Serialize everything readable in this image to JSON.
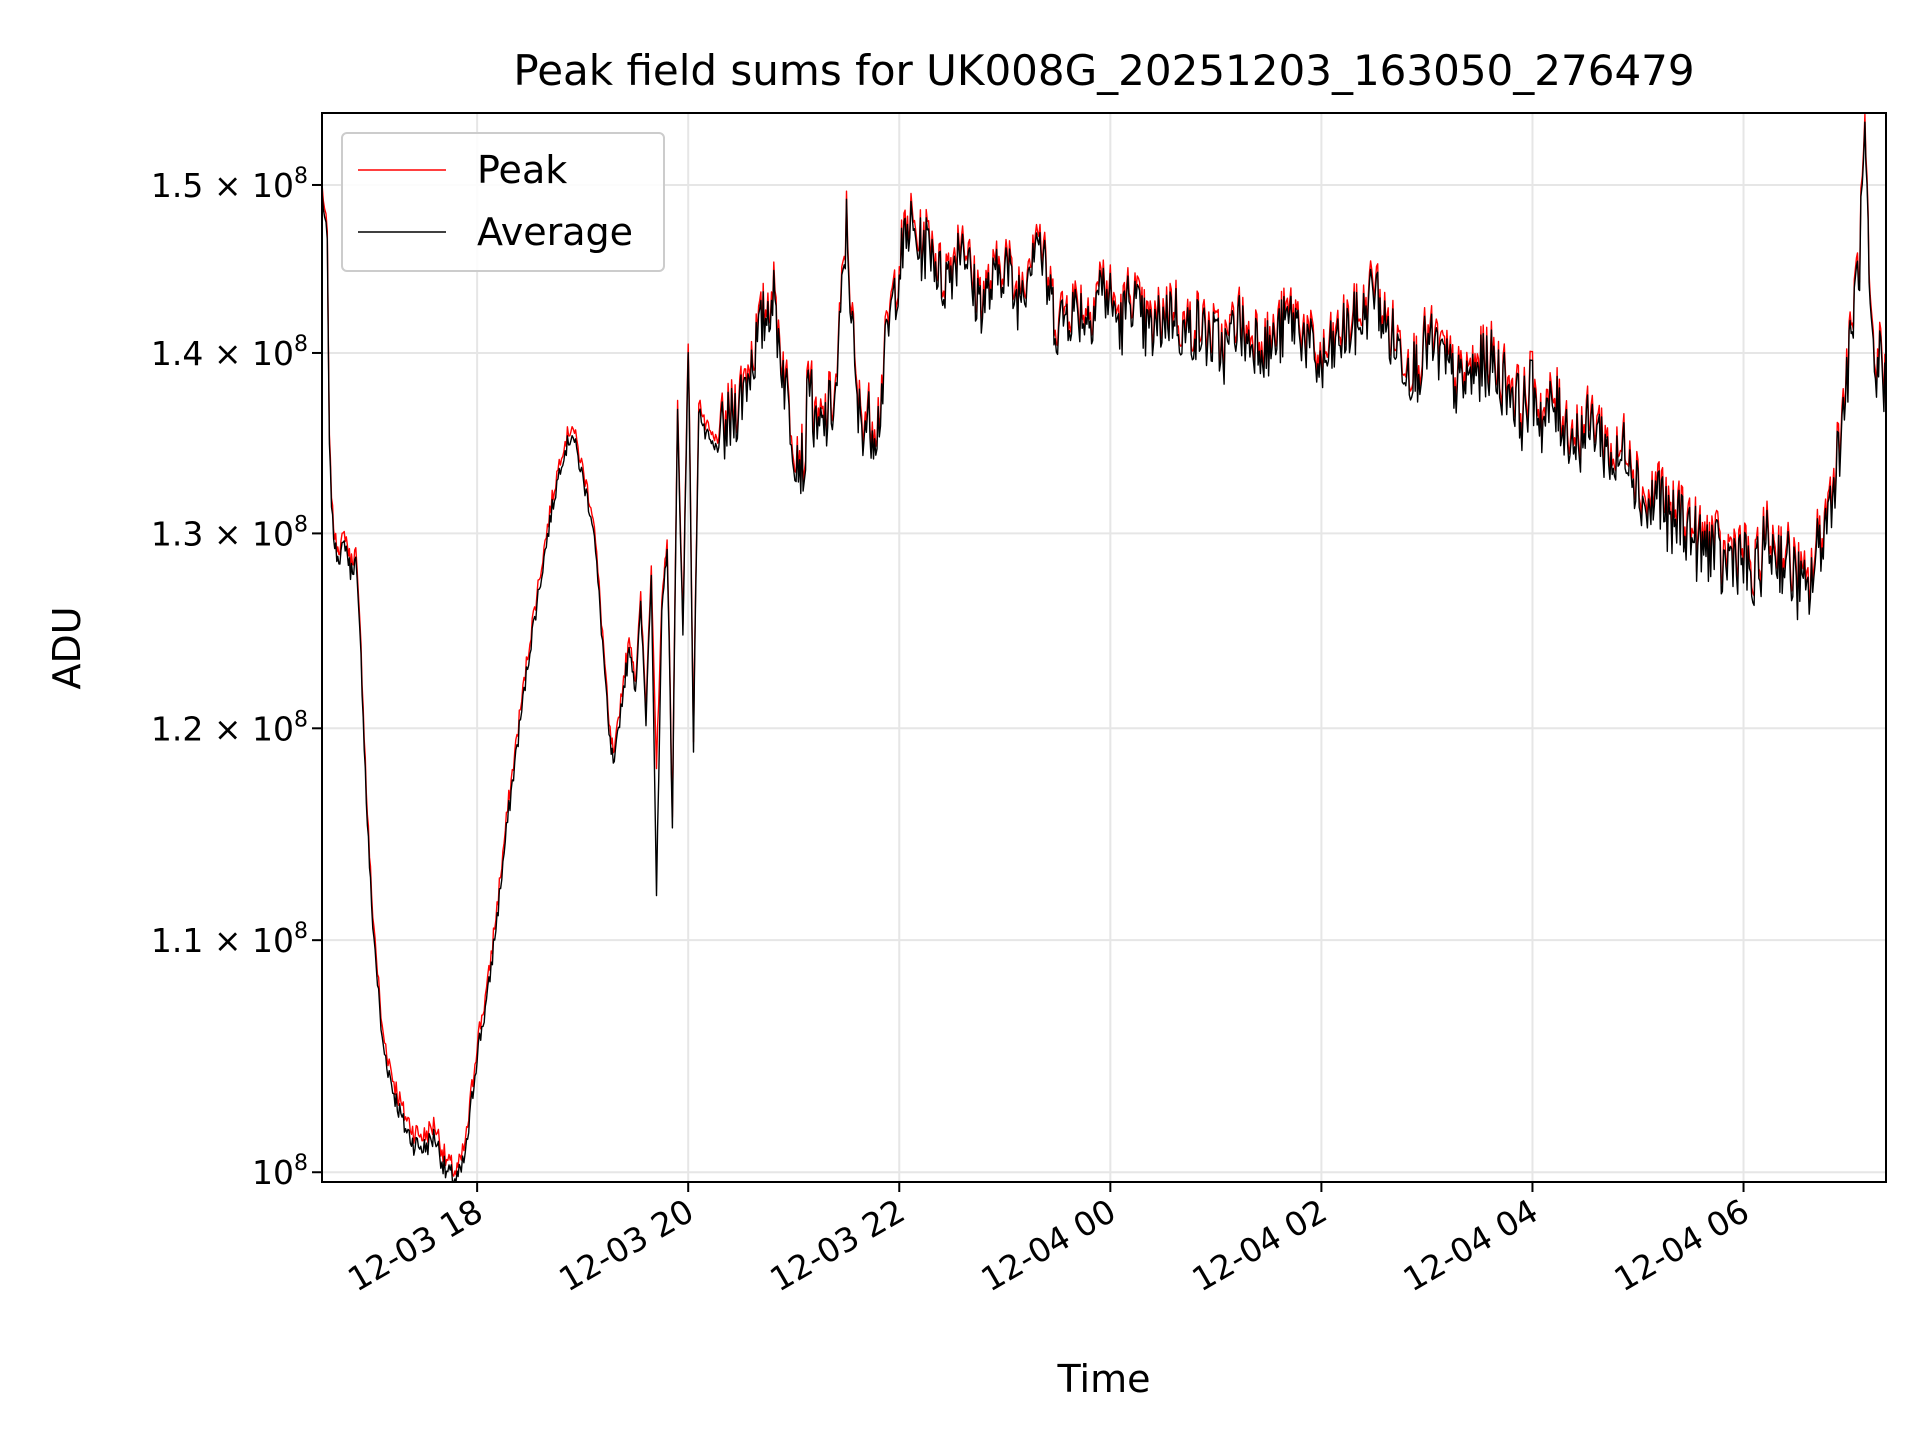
{
  "chart_data": {
    "type": "line",
    "title": "Peak field sums for UK008G_20251203_163050_276479",
    "xlabel": "Time",
    "ylabel": "ADU",
    "yscale": "log",
    "ylim": [
      99600000,
      154500000
    ],
    "xlim_hours": [
      16.53,
      31.35
    ],
    "grid": true,
    "legend_position": "upper-left",
    "y_ticks": [
      {
        "value": 100000000,
        "mantissa": "",
        "exp": "8",
        "label": "10^8"
      },
      {
        "value": 110000000,
        "mantissa": "1.1",
        "exp": "8",
        "label": "1.1 × 10^8"
      },
      {
        "value": 120000000,
        "mantissa": "1.2",
        "exp": "8",
        "label": "1.2 × 10^8"
      },
      {
        "value": 130000000,
        "mantissa": "1.3",
        "exp": "8",
        "label": "1.3 × 10^8"
      },
      {
        "value": 140000000,
        "mantissa": "1.4",
        "exp": "8",
        "label": "1.4 × 10^8"
      },
      {
        "value": 150000000,
        "mantissa": "1.5",
        "exp": "8",
        "label": "1.5 × 10^8"
      }
    ],
    "x_ticks": [
      {
        "hour": 18,
        "label": "12-03 18"
      },
      {
        "hour": 20,
        "label": "12-03 20"
      },
      {
        "hour": 22,
        "label": "12-03 22"
      },
      {
        "hour": 24,
        "label": "12-04 00"
      },
      {
        "hour": 26,
        "label": "12-04 02"
      },
      {
        "hour": 28,
        "label": "12-04 04"
      },
      {
        "hour": 30,
        "label": "12-04 06"
      }
    ],
    "series": [
      {
        "name": "Peak",
        "color": "#ff0000",
        "offset_fraction": 0.004,
        "x_hours": [
          16.53,
          16.58,
          16.6,
          16.63,
          16.66,
          16.7,
          16.75,
          16.8,
          16.85,
          16.9,
          16.95,
          17.0,
          17.1,
          17.2,
          17.3,
          17.4,
          17.5,
          17.6,
          17.7,
          17.8,
          17.85,
          17.9,
          17.95,
          18.0,
          18.1,
          18.2,
          18.3,
          18.4,
          18.5,
          18.6,
          18.7,
          18.8,
          18.9,
          19.0,
          19.1,
          19.2,
          19.25,
          19.3,
          19.35,
          19.4,
          19.45,
          19.5,
          19.55,
          19.6,
          19.65,
          19.7,
          19.75,
          19.8,
          19.85,
          19.9,
          19.95,
          20.0,
          20.05,
          20.1,
          20.15,
          20.2,
          20.25,
          20.3,
          20.4,
          20.5,
          20.6,
          20.7,
          20.8,
          20.9,
          21.0,
          21.1,
          21.15,
          21.2,
          21.3,
          21.4,
          21.5,
          21.6,
          21.7,
          21.8,
          21.9,
          22.0,
          22.1,
          22.2,
          22.3,
          22.4,
          22.5,
          22.6,
          22.7,
          22.8,
          22.9,
          23.0,
          23.1,
          23.2,
          23.3,
          23.4,
          23.5,
          23.6,
          23.7,
          23.8,
          23.9,
          24.0,
          24.1,
          24.2,
          24.3,
          24.4,
          24.5,
          24.6,
          24.7,
          24.8,
          24.9,
          25.0,
          25.1,
          25.2,
          25.3,
          25.4,
          25.5,
          25.6,
          25.7,
          25.8,
          25.9,
          26.0,
          26.1,
          26.2,
          26.3,
          26.4,
          26.5,
          26.6,
          26.7,
          26.8,
          26.9,
          27.0,
          27.1,
          27.2,
          27.3,
          27.4,
          27.5,
          27.6,
          27.7,
          27.8,
          27.9,
          28.0,
          28.1,
          28.2,
          28.3,
          28.4,
          28.5,
          28.6,
          28.7,
          28.8,
          28.9,
          29.0,
          29.1,
          29.2,
          29.3,
          29.4,
          29.5,
          29.6,
          29.7,
          29.8,
          29.9,
          30.0,
          30.1,
          30.2,
          30.3,
          30.4,
          30.5,
          30.6,
          30.7,
          30.8,
          30.9,
          31.0,
          31.05,
          31.1,
          31.15,
          31.2,
          31.25,
          31.3,
          31.35
        ],
        "values": [
          150000000,
          147000000,
          135000000,
          131000000,
          129500000,
          129300000,
          130000000,
          128500000,
          129000000,
          124000000,
          117000000,
          112000000,
          106000000,
          104000000,
          102500000,
          101700000,
          101500000,
          102000000,
          100500000,
          100000000,
          100500000,
          101500000,
          103500000,
          105500000,
          108000000,
          112000000,
          116500000,
          120500000,
          124500000,
          128000000,
          131500000,
          134500000,
          136000000,
          133500000,
          131000000,
          124000000,
          120000000,
          118500000,
          121000000,
          123000000,
          124500000,
          122500000,
          126500000,
          121000000,
          128500000,
          118000000,
          126000000,
          130000000,
          116000000,
          137000000,
          125000000,
          141000000,
          119500000,
          137500000,
          136000000,
          135500000,
          135000000,
          135500000,
          136500000,
          138000000,
          140000000,
          142000000,
          144000000,
          139500000,
          135500000,
          134000000,
          140000000,
          135500000,
          136500000,
          138000000,
          148000000,
          137000000,
          136500000,
          136500000,
          142000000,
          145500000,
          148000000,
          146500000,
          147000000,
          144500000,
          145500000,
          147500000,
          144000000,
          143500000,
          144500000,
          146000000,
          143500000,
          145000000,
          148000000,
          144500000,
          142000000,
          143000000,
          143000000,
          142500000,
          144500000,
          143500000,
          142000000,
          144000000,
          142000000,
          141500000,
          142500000,
          143000000,
          141500000,
          142000000,
          141500000,
          141000000,
          140500000,
          142500000,
          141000000,
          141500000,
          140500000,
          141500000,
          142500000,
          142000000,
          140500000,
          139500000,
          140500000,
          141500000,
          142000000,
          142500000,
          144500000,
          142000000,
          141000000,
          140000000,
          139500000,
          141000000,
          140500000,
          139500000,
          138500000,
          139000000,
          139500000,
          140000000,
          139000000,
          138500000,
          137000000,
          138500000,
          136500000,
          137500000,
          136500000,
          135500000,
          136000000,
          136500000,
          135000000,
          134000000,
          135500000,
          133000000,
          131500000,
          133000000,
          130500000,
          131500000,
          130500000,
          129500000,
          130000000,
          128500000,
          129500000,
          129000000,
          127500000,
          130000000,
          129500000,
          129000000,
          128000000,
          127000000,
          129500000,
          131500000,
          135000000,
          140000000,
          143500000,
          146000000,
          153500000,
          142000000,
          138000000,
          141000000,
          137500000
        ],
        "noise": 2000000
      },
      {
        "name": "Average",
        "color": "#000000",
        "offset_fraction": 0.0,
        "x_hours": [
          16.53,
          16.58,
          16.6,
          16.63,
          16.66,
          16.7,
          16.75,
          16.8,
          16.85,
          16.9,
          16.95,
          17.0,
          17.1,
          17.2,
          17.3,
          17.4,
          17.5,
          17.6,
          17.7,
          17.8,
          17.85,
          17.9,
          17.95,
          18.0,
          18.1,
          18.2,
          18.3,
          18.4,
          18.5,
          18.6,
          18.7,
          18.8,
          18.9,
          19.0,
          19.1,
          19.2,
          19.25,
          19.3,
          19.35,
          19.4,
          19.45,
          19.5,
          19.55,
          19.6,
          19.65,
          19.7,
          19.75,
          19.8,
          19.85,
          19.9,
          19.95,
          20.0,
          20.05,
          20.1,
          20.15,
          20.2,
          20.25,
          20.3,
          20.4,
          20.5,
          20.6,
          20.7,
          20.8,
          20.9,
          21.0,
          21.1,
          21.15,
          21.2,
          21.3,
          21.4,
          21.5,
          21.6,
          21.7,
          21.8,
          21.9,
          22.0,
          22.1,
          22.2,
          22.3,
          22.4,
          22.5,
          22.6,
          22.7,
          22.8,
          22.9,
          23.0,
          23.1,
          23.2,
          23.3,
          23.4,
          23.5,
          23.6,
          23.7,
          23.8,
          23.9,
          24.0,
          24.1,
          24.2,
          24.3,
          24.4,
          24.5,
          24.6,
          24.7,
          24.8,
          24.9,
          25.0,
          25.1,
          25.2,
          25.3,
          25.4,
          25.5,
          25.6,
          25.7,
          25.8,
          25.9,
          26.0,
          26.1,
          26.2,
          26.3,
          26.4,
          26.5,
          26.6,
          26.7,
          26.8,
          26.9,
          27.0,
          27.1,
          27.2,
          27.3,
          27.4,
          27.5,
          27.6,
          27.7,
          27.8,
          27.9,
          28.0,
          28.1,
          28.2,
          28.3,
          28.4,
          28.5,
          28.6,
          28.7,
          28.8,
          28.9,
          29.0,
          29.1,
          29.2,
          29.3,
          29.4,
          29.5,
          29.6,
          29.7,
          29.8,
          29.9,
          30.0,
          30.1,
          30.2,
          30.3,
          30.4,
          30.5,
          30.6,
          30.7,
          30.8,
          30.9,
          31.0,
          31.05,
          31.1,
          31.15,
          31.2,
          31.25,
          31.3,
          31.35
        ],
        "values": [
          149500000,
          146500000,
          134500000,
          130500000,
          129000000,
          128800000,
          129500000,
          128000000,
          128500000,
          123500000,
          116500000,
          111500000,
          105500000,
          103500000,
          102000000,
          101200000,
          101000000,
          101500000,
          100000000,
          99700000,
          100000000,
          101000000,
          103000000,
          105000000,
          107500000,
          111500000,
          116000000,
          120000000,
          124000000,
          127500000,
          131000000,
          134000000,
          135500000,
          133000000,
          130500000,
          123500000,
          119500000,
          118000000,
          120500000,
          122500000,
          124000000,
          122000000,
          126000000,
          120500000,
          128000000,
          112000000,
          125500000,
          129500000,
          115500000,
          136500000,
          124500000,
          140500000,
          119000000,
          137000000,
          135500000,
          135000000,
          134500000,
          135000000,
          136000000,
          137500000,
          139500000,
          141500000,
          143500000,
          139000000,
          135000000,
          133500000,
          139500000,
          135000000,
          136000000,
          137500000,
          147500000,
          136500000,
          136000000,
          136000000,
          141500000,
          145000000,
          147500000,
          146000000,
          146500000,
          144000000,
          145000000,
          147000000,
          143500000,
          143000000,
          144000000,
          145500000,
          143000000,
          144500000,
          147500000,
          144000000,
          141500000,
          142500000,
          142500000,
          142000000,
          144000000,
          143000000,
          141500000,
          143500000,
          141500000,
          141000000,
          142000000,
          142500000,
          141000000,
          141500000,
          141000000,
          140500000,
          140000000,
          142000000,
          140500000,
          141000000,
          140000000,
          141000000,
          142000000,
          141500000,
          140000000,
          139000000,
          140000000,
          141000000,
          141500000,
          142000000,
          144000000,
          141500000,
          140500000,
          139500000,
          139000000,
          140500000,
          140000000,
          139000000,
          138000000,
          138500000,
          139000000,
          139500000,
          138500000,
          138000000,
          136500000,
          138000000,
          136000000,
          137000000,
          136000000,
          135000000,
          135500000,
          136000000,
          134500000,
          133500000,
          135000000,
          132500000,
          131000000,
          132500000,
          130000000,
          131000000,
          130000000,
          129000000,
          129500000,
          128000000,
          129000000,
          128500000,
          127000000,
          129500000,
          129000000,
          128500000,
          127500000,
          126500000,
          129000000,
          131000000,
          134500000,
          139500000,
          143000000,
          145500000,
          153000000,
          141500000,
          137500000,
          140500000,
          137000000
        ],
        "noise": 2000000
      }
    ]
  }
}
